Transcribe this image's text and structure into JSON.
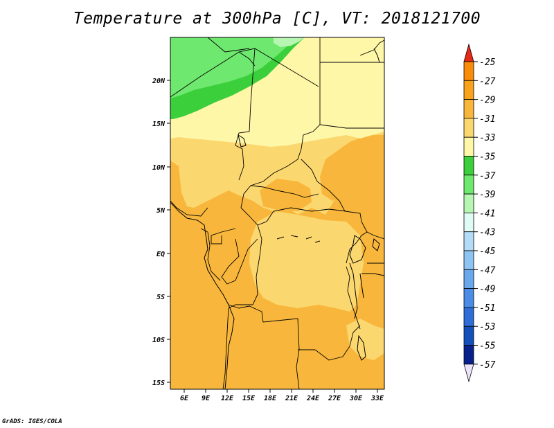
{
  "title": "Temperature at 300hPa [C], VT: 2018121700",
  "credit": "GrADS: IGES/COLA",
  "map": {
    "lat_labels": [
      "20N",
      "15N",
      "10N",
      "5N",
      "EQ",
      "5S",
      "10S",
      "15S"
    ],
    "lon_labels": [
      "6E",
      "9E",
      "12E",
      "15E",
      "18E",
      "21E",
      "24E",
      "27E",
      "30E",
      "33E"
    ],
    "lon_range": [
      4,
      33
    ],
    "lat_range": [
      -16,
      25
    ]
  },
  "colorbar": {
    "labels": [
      "-25",
      "-27",
      "-29",
      "-31",
      "-33",
      "-35",
      "-37",
      "-39",
      "-41",
      "-43",
      "-45",
      "-47",
      "-49",
      "-51",
      "-53",
      "-55",
      "-57"
    ],
    "colors": [
      "#f05a14",
      "#fa8c0a",
      "#f9a31c",
      "#f8b73c",
      "#fbd86f",
      "#fff7a8",
      "#3ccf3c",
      "#6ee86e",
      "#b6f6b2",
      "#e0fbf4",
      "#b4dcf8",
      "#8ec4f4",
      "#6aa8ee",
      "#4a8ce6",
      "#2f6ed8",
      "#1450bc",
      "#08208c"
    ],
    "top_triangle_color": "#e62814",
    "bottom_triangle_color": "#ece4fc"
  }
}
